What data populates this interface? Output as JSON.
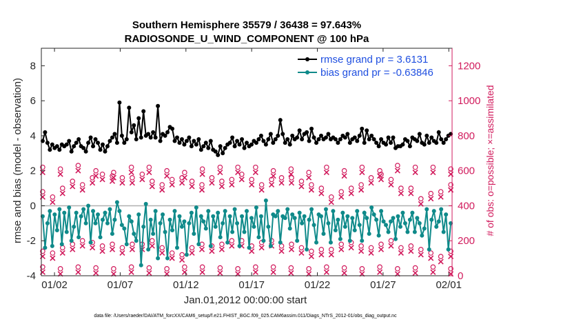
{
  "chart_data": {
    "type": "line",
    "title": "Southern Hemisphere 35579 / 36438 = 97.643%",
    "subtitle": "RADIOSONDE_U_WIND_COMPONENT @ 100 hPa",
    "xlabel": "Jan.01,2012 00:00:00 start",
    "ylabel": "rmse and bias (model - observation)",
    "y2label": "# of obs: o=possible; ×=assimilated",
    "footnote": "data file: /Users/raeder/DAI/ATM_forcXX/CAM6_setup/f.e21.FHIST_BGC.f09_025.CAM6assim.011/Diags_NTrS_2012-01/obs_diag_output.nc",
    "x_range_days": [
      0,
      31.25
    ],
    "ylim": [
      -4,
      9
    ],
    "y2lim": [
      0,
      1300
    ],
    "x_ticks": [
      {
        "day": 1,
        "label": "01/02"
      },
      {
        "day": 6,
        "label": "01/07"
      },
      {
        "day": 11,
        "label": "01/12"
      },
      {
        "day": 16,
        "label": "01/17"
      },
      {
        "day": 21,
        "label": "01/22"
      },
      {
        "day": 26,
        "label": "01/27"
      },
      {
        "day": 31,
        "label": "02/01"
      }
    ],
    "y_ticks": [
      "-4",
      "-2",
      "0",
      "2",
      "4",
      "6",
      "8"
    ],
    "y2_ticks": [
      "0",
      "200",
      "400",
      "600",
      "800",
      "1000",
      "1200"
    ],
    "grid": false,
    "series": [
      {
        "name": "rmse",
        "legend": "rmse grand pr = 3.6131",
        "color": "#000000",
        "values": [
          3.7,
          4.2,
          3.6,
          3.2,
          3.5,
          3.3,
          3.4,
          3.2,
          3.5,
          3.4,
          3.5,
          3.7,
          3.1,
          3.4,
          3.6,
          3.8,
          3.4,
          3.3,
          3.1,
          3.6,
          3.9,
          3.4,
          3.8,
          3.6,
          3.2,
          3.5,
          3.1,
          3.4,
          3.7,
          3.9,
          4.1,
          3.6,
          5.9,
          4.0,
          3.6,
          3.8,
          5.6,
          4.2,
          4.6,
          3.8,
          5.0,
          3.9,
          5.4,
          4.0,
          4.1,
          3.9,
          4.2,
          3.9,
          5.7,
          3.7,
          4.1,
          4.0,
          4.2,
          4.5,
          4.4,
          3.7,
          3.9,
          3.6,
          3.8,
          3.5,
          3.7,
          3.9,
          3.4,
          3.7,
          3.5,
          3.8,
          3.2,
          3.4,
          3.6,
          3.3,
          3.7,
          3.2,
          3.1,
          2.9,
          3.4,
          3.0,
          3.3,
          3.5,
          3.6,
          3.9,
          3.4,
          3.7,
          3.5,
          3.8,
          3.3,
          3.6,
          3.4,
          3.5,
          3.7,
          3.6,
          3.8,
          4.0,
          3.7,
          3.5,
          3.8,
          4.1,
          3.6,
          3.8,
          4.0,
          4.9,
          4.1,
          3.6,
          3.8,
          3.5,
          4.0,
          3.8,
          3.9,
          4.3,
          3.8,
          4.1,
          4.2,
          3.7,
          4.4,
          3.9,
          3.6,
          3.8,
          4.0,
          3.8,
          3.9,
          4.1,
          3.8,
          3.9,
          3.8,
          3.6,
          3.8,
          4.0,
          3.9,
          4.1,
          3.6,
          3.8,
          3.9,
          3.7,
          4.0,
          4.4,
          3.6,
          4.3,
          3.8,
          4.0,
          3.8,
          3.6,
          3.4,
          3.8,
          3.6,
          3.5,
          3.9,
          3.6,
          3.9,
          3.3,
          3.4,
          3.4,
          3.5,
          3.8,
          3.7,
          3.4,
          3.9,
          3.8,
          3.7,
          4.1,
          3.6,
          3.5,
          4.0,
          3.6,
          3.9,
          3.7,
          3.6,
          4.2,
          3.8,
          3.6,
          3.8,
          4.0,
          4.1
        ]
      },
      {
        "name": "bias",
        "legend": "bias grand pr = -0.63846",
        "color": "#0f8a8a",
        "values": [
          -0.6,
          -2.4,
          -1.0,
          -0.3,
          -2.3,
          -0.5,
          -1.4,
          -0.2,
          -2.2,
          -0.4,
          -1.5,
          -0.1,
          -2.0,
          -1.2,
          -0.4,
          -1.8,
          -0.6,
          -0.2,
          -1.0,
          0.0,
          -2.1,
          -0.3,
          -1.0,
          -0.5,
          -1.8,
          -0.8,
          -0.4,
          -1.0,
          -0.2,
          -1.6,
          -0.8,
          0.2,
          -0.3,
          -1.1,
          -1.3,
          -2.2,
          -0.6,
          -0.9,
          -1.6,
          -2.0,
          -0.5,
          -3.4,
          -1.2,
          0.1,
          -2.5,
          -0.8,
          -1.6,
          -0.3,
          -3.0,
          -1.0,
          -0.5,
          -1.5,
          -3.0,
          -0.8,
          -1.4,
          -0.3,
          -2.4,
          -0.6,
          -1.2,
          -0.9,
          -2.8,
          -1.0,
          -0.4,
          -1.6,
          -0.1,
          -2.2,
          -0.6,
          -0.9,
          -1.3,
          -0.3,
          -2.3,
          -0.6,
          -1.2,
          -0.4,
          -1.8,
          -1.0,
          -0.3,
          -2.1,
          -0.6,
          -1.5,
          -0.2,
          -1.0,
          -2.3,
          -0.6,
          -1.5,
          -0.3,
          -2.4,
          -0.7,
          -1.2,
          -0.1,
          -1.8,
          -0.6,
          -2.0,
          0.3,
          -1.2,
          -2.3,
          -0.5,
          -0.6,
          -0.3,
          -2.1,
          -0.6,
          -0.7,
          -0.2,
          -1.3,
          -0.5,
          -0.7,
          -2.0,
          -0.4,
          -1.0,
          -0.6,
          -2.5,
          -0.8,
          -0.2,
          -1.1,
          -2.1,
          -0.5,
          -0.6,
          -1.6,
          -0.2,
          -1.0,
          -2.1,
          -0.3,
          -1.4,
          -0.8,
          -1.9,
          -0.4,
          -1.2,
          -0.6,
          -2.0,
          -0.7,
          -1.4,
          -0.3,
          -1.1,
          -2.0,
          -0.4,
          -0.7,
          -1.6,
          -0.1,
          -0.5,
          -0.8,
          -1.7,
          -0.3,
          -0.9,
          -1.1,
          -1.5,
          -0.9,
          -0.7,
          -1.9,
          -0.6,
          -1.2,
          -0.4,
          -1.0,
          -1.5,
          -0.8,
          -0.4,
          -1.5,
          -0.7,
          -1.0,
          -1.7,
          -1.3,
          -0.2,
          -2.5,
          -0.8,
          -0.3,
          -1.2,
          -0.9,
          -0.2,
          -1.5,
          -0.5,
          -2.5,
          -1.0
        ]
      },
      {
        "name": "obs possible",
        "color": "#d11a5c",
        "marker": "o",
        "axis": "right",
        "high": [
          620,
          610,
          630,
          600,
          590,
          620,
          620,
          600,
          590,
          610,
          620,
          620,
          620,
          600,
          610,
          590,
          620,
          600,
          620,
          600,
          630,
          620,
          620,
          610
        ],
        "low": [
          50,
          40,
          50,
          45,
          40,
          50,
          45,
          40,
          50,
          50,
          45,
          40,
          50,
          50,
          45,
          40,
          50,
          45,
          40,
          50,
          40,
          45,
          50,
          40
        ],
        "mid_high": [
          480,
          450,
          500,
          540,
          520,
          560,
          580,
          570,
          560,
          560,
          580,
          540,
          520,
          550,
          560,
          540,
          520,
          560,
          540,
          550,
          580,
          550,
          520,
          550,
          560,
          560,
          540,
          520,
          500,
          450,
          480,
          500,
          520,
          560,
          580,
          550,
          500,
          500,
          440,
          470,
          480,
          520
        ],
        "mid_low": [
          140,
          130,
          160,
          180,
          200,
          190,
          170,
          180,
          160,
          180,
          180,
          200,
          160,
          130,
          120,
          160,
          180,
          170,
          180,
          200,
          200,
          170,
          190,
          200,
          170,
          180,
          160,
          140,
          150,
          150,
          180,
          190,
          170,
          160,
          180,
          200,
          160,
          170,
          150,
          130,
          110,
          140
        ]
      }
    ]
  }
}
